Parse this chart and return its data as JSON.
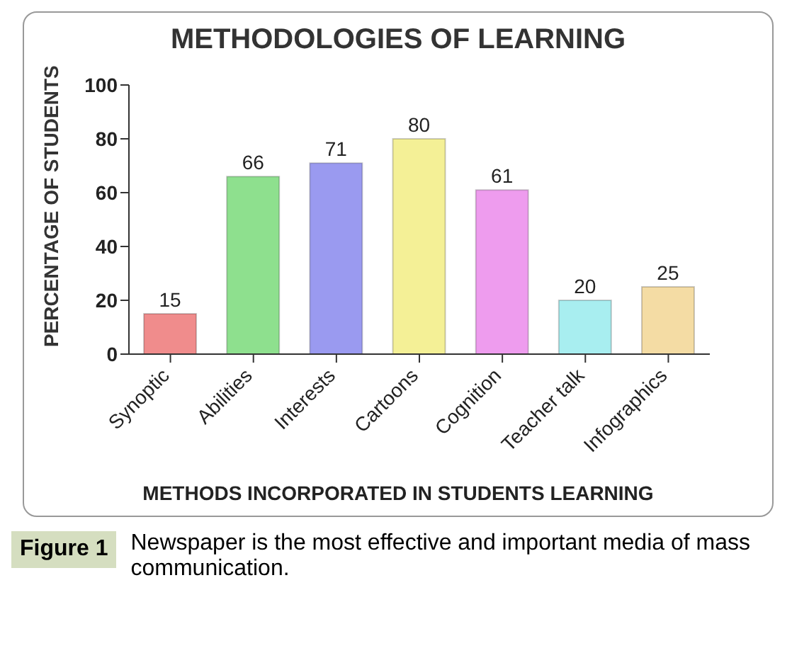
{
  "chart_data": {
    "type": "bar",
    "title": "METHODOLOGIES OF LEARNING",
    "xlabel": "METHODS INCORPORATED IN STUDENTS LEARNING",
    "ylabel": "PERCENTAGE OF STUDENTS",
    "categories": [
      "Synoptic",
      "Abilities",
      "Interests",
      "Cartoons",
      "Cognition",
      "Teacher talk",
      "Infographics"
    ],
    "values": [
      15,
      66,
      71,
      80,
      61,
      20,
      25
    ],
    "colors": [
      "#f08c8c",
      "#8ee08e",
      "#9a9af0",
      "#f4f096",
      "#ee9cee",
      "#a8eef0",
      "#f4dca4"
    ],
    "ylim": [
      0,
      100
    ],
    "yticks": [
      0,
      20,
      40,
      60,
      80,
      100
    ],
    "grid": false,
    "legend": false,
    "data_labels": true,
    "annotations": [
      "Figure 1",
      "Newspaper is the most effective and important media of mass communication."
    ]
  }
}
